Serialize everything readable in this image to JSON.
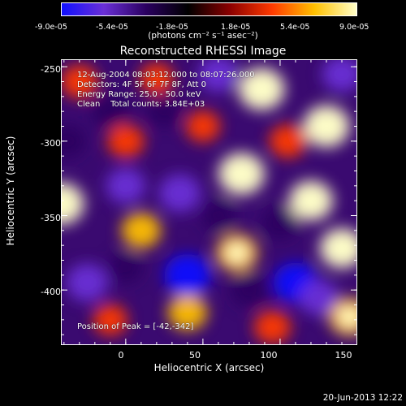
{
  "colorbar": {
    "ticks": [
      "-9.0e-05",
      "-5.4e-05",
      "-1.8e-05",
      "1.8e-05",
      "5.4e-05",
      "9.0e-05"
    ],
    "units": "(photons cm⁻² s⁻¹ asec⁻²)",
    "colors": [
      "#1010ff",
      "#6a2fd6",
      "#2a0060",
      "#000000",
      "#8c0000",
      "#ff3a00",
      "#ffc000",
      "#ffffc8"
    ]
  },
  "annotations": {
    "time": "12-Aug-2004 08:03:12.000 to 08:07:26.000",
    "detectors": "Detectors: 4F 5F 6F 7F 8F, Att 0",
    "energy": "Energy Range: 25.0 - 50.0 keV",
    "clean": "Clean    Total counts: 3.84E+03",
    "peak": "Position of Peak = [-42,-342]"
  },
  "footer": "20-Jun-2013 12:22",
  "chart_data": {
    "type": "heatmap",
    "title": "Reconstructed RHESSI Image",
    "xlabel": "Heliocentric X (arcsec)",
    "ylabel": "Heliocentric Y (arcsec)",
    "xlim": [
      -42,
      150
    ],
    "ylim": [
      -437,
      -245
    ],
    "xticks": [
      "0",
      "50",
      "100",
      "150"
    ],
    "yticks": [
      "-250",
      "-300",
      "-350",
      "-400"
    ],
    "xtick_values": [
      0,
      50,
      100,
      150
    ],
    "ytick_values": [
      -250,
      -300,
      -350,
      -400
    ],
    "clim": [
      -9e-05,
      9e-05
    ],
    "features": [
      {
        "x": 88,
        "y": -265,
        "value": 9e-05
      },
      {
        "x": 130,
        "y": -290,
        "value": 9e-05
      },
      {
        "x": 75,
        "y": -322,
        "value": 9e-05
      },
      {
        "x": 120,
        "y": -340,
        "value": 8e-05
      },
      {
        "x": -42,
        "y": -342,
        "value": 9e-05
      },
      {
        "x": 10,
        "y": -360,
        "value": 6e-05
      },
      {
        "x": 140,
        "y": -372,
        "value": 8e-05
      },
      {
        "x": 72,
        "y": -375,
        "value": 7e-05
      },
      {
        "x": 0,
        "y": -300,
        "value": 5e-05
      },
      {
        "x": 50,
        "y": -290,
        "value": 4e-05
      },
      {
        "x": 105,
        "y": -300,
        "value": 5e-05
      },
      {
        "x": 40,
        "y": -415,
        "value": 6e-05
      },
      {
        "x": 145,
        "y": -418,
        "value": 7e-05
      },
      {
        "x": 95,
        "y": -425,
        "value": 5e-05
      },
      {
        "x": -10,
        "y": -420,
        "value": 4e-05
      },
      {
        "x": 20,
        "y": -258,
        "value": 4e-05
      },
      {
        "x": -30,
        "y": -260,
        "value": 5e-05
      },
      {
        "x": 35,
        "y": -335,
        "value": -7e-05
      },
      {
        "x": 0,
        "y": -330,
        "value": -6e-05
      },
      {
        "x": 40,
        "y": -390,
        "value": -9e-05
      },
      {
        "x": -25,
        "y": -395,
        "value": -7e-05
      },
      {
        "x": 110,
        "y": -395,
        "value": -8e-05
      },
      {
        "x": 60,
        "y": -255,
        "value": -6e-05
      },
      {
        "x": 140,
        "y": -255,
        "value": -6e-05
      },
      {
        "x": 100,
        "y": -355,
        "value": -5e-05
      },
      {
        "x": -10,
        "y": -280,
        "value": -5e-05
      },
      {
        "x": 60,
        "y": -350,
        "value": -4e-05
      },
      {
        "x": 125,
        "y": -405,
        "value": -6e-05
      },
      {
        "x": -38,
        "y": -300,
        "value": -5e-05
      },
      {
        "x": 80,
        "y": -400,
        "value": -5e-05
      },
      {
        "x": 0,
        "y": -385,
        "value": -4e-05
      },
      {
        "x": 25,
        "y": -280,
        "value": -4e-05
      }
    ]
  }
}
